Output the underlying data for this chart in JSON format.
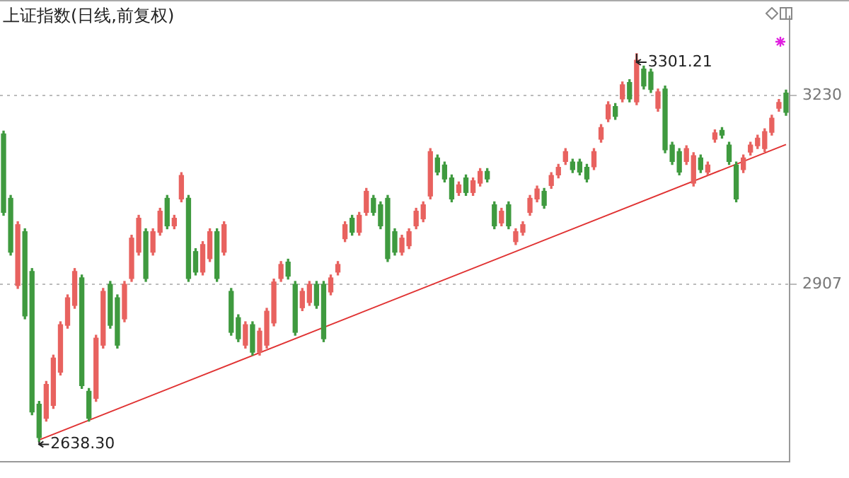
{
  "chart_data": {
    "type": "candlestick",
    "title": "上证指数(日线,前复权)",
    "categories": [
      null,
      null,
      null,
      null,
      null,
      null,
      null,
      null,
      null,
      null,
      null,
      null,
      null,
      null,
      null,
      null,
      null,
      null,
      null,
      null,
      null,
      null,
      null,
      null,
      null,
      null,
      null,
      null,
      null,
      null,
      null,
      null,
      null,
      null,
      null,
      null,
      null,
      null,
      null,
      null,
      null,
      null,
      null,
      null,
      null,
      null,
      null,
      null,
      null,
      null,
      null,
      null,
      null,
      null,
      null,
      null,
      null,
      null,
      null,
      null,
      null,
      null,
      null,
      null,
      null,
      null,
      null,
      null,
      null,
      null,
      null,
      null,
      null,
      null,
      null,
      null,
      null,
      null,
      null,
      null,
      null,
      null,
      null,
      null,
      null,
      null,
      null,
      null,
      null,
      null,
      null,
      null,
      null,
      null,
      null,
      null,
      null,
      null,
      null,
      null,
      null,
      null,
      null,
      null,
      null,
      null,
      null,
      null,
      null,
      null,
      null
    ],
    "ohlc": [
      [
        3164,
        3169,
        3025,
        3030
      ],
      [
        3054,
        3059,
        2957,
        2962
      ],
      [
        2905,
        3014,
        2900,
        3009
      ],
      [
        2997,
        3002,
        2848,
        2853
      ],
      [
        2929,
        2934,
        2684,
        2689
      ],
      [
        2702,
        2707,
        2638.3,
        2645
      ],
      [
        2678,
        2741,
        2673,
        2736
      ],
      [
        2700,
        2786,
        2695,
        2781
      ],
      [
        2757,
        2843,
        2752,
        2838
      ],
      [
        2837,
        2889,
        2832,
        2884
      ],
      [
        2871,
        2934,
        2866,
        2929
      ],
      [
        2918,
        2923,
        2729,
        2734
      ],
      [
        2724,
        2729,
        2673,
        2678
      ],
      [
        2712,
        2820,
        2707,
        2815
      ],
      [
        2803,
        2900,
        2798,
        2895
      ],
      [
        2907,
        2912,
        2832,
        2837
      ],
      [
        2884,
        2889,
        2798,
        2803
      ],
      [
        2848,
        2912,
        2843,
        2907
      ],
      [
        2917,
        2991,
        2912,
        2986
      ],
      [
        2962,
        3025,
        2957,
        3020
      ],
      [
        2997,
        3002,
        2912,
        2917
      ],
      [
        2962,
        3002,
        2957,
        2997
      ],
      [
        2996,
        3037,
        2991,
        3032
      ],
      [
        3054,
        3059,
        3002,
        3007
      ],
      [
        3007,
        3025,
        3002,
        3020
      ],
      [
        3053,
        3098,
        3048,
        3093
      ],
      [
        3054,
        3059,
        2912,
        2917
      ],
      [
        2963,
        2968,
        2923,
        2928
      ],
      [
        2928,
        2980,
        2923,
        2975
      ],
      [
        2951,
        3002,
        2946,
        2997
      ],
      [
        2997,
        3002,
        2912,
        2917
      ],
      [
        2962,
        3014,
        2957,
        3009
      ],
      [
        2895,
        2900,
        2820,
        2825
      ],
      [
        2850,
        2855,
        2809,
        2814
      ],
      [
        2803,
        2843,
        2798,
        2838
      ],
      [
        2838,
        2843,
        2786,
        2791
      ],
      [
        2791,
        2832,
        2786,
        2827
      ],
      [
        2803,
        2866,
        2798,
        2861
      ],
      [
        2841,
        2916,
        2836,
        2911
      ],
      [
        2917,
        2946,
        2912,
        2941
      ],
      [
        2945,
        2950,
        2916,
        2921
      ],
      [
        2907,
        2912,
        2820,
        2825
      ],
      [
        2867,
        2900,
        2862,
        2895
      ],
      [
        2876,
        2912,
        2871,
        2907
      ],
      [
        2907,
        2912,
        2866,
        2871
      ],
      [
        2907,
        2912,
        2809,
        2814
      ],
      [
        2894,
        2923,
        2889,
        2918
      ],
      [
        2928,
        2946,
        2923,
        2941
      ],
      [
        2985,
        3014,
        2980,
        3009
      ],
      [
        3020,
        3025,
        2991,
        2996
      ],
      [
        2996,
        3030,
        2991,
        3025
      ],
      [
        3030,
        3071,
        3025,
        3066
      ],
      [
        3054,
        3059,
        3025,
        3030
      ],
      [
        3043,
        3048,
        3002,
        3007
      ],
      [
        3054,
        3059,
        2946,
        2951
      ],
      [
        2997,
        3002,
        2957,
        2962
      ],
      [
        2962,
        2991,
        2957,
        2986
      ],
      [
        2973,
        3002,
        2968,
        2997
      ],
      [
        3007,
        3037,
        3002,
        3032
      ],
      [
        3019,
        3048,
        3014,
        3043
      ],
      [
        3058,
        3139,
        3053,
        3134
      ],
      [
        3123,
        3128,
        3094,
        3099
      ],
      [
        3111,
        3116,
        3082,
        3087
      ],
      [
        3089,
        3094,
        3048,
        3053
      ],
      [
        3064,
        3082,
        3059,
        3077
      ],
      [
        3089,
        3094,
        3059,
        3064
      ],
      [
        3064,
        3089,
        3059,
        3084
      ],
      [
        3080,
        3105,
        3075,
        3100
      ],
      [
        3100,
        3105,
        3082,
        3087
      ],
      [
        3043,
        3048,
        3002,
        3007
      ],
      [
        3012,
        3037,
        3007,
        3032
      ],
      [
        3043,
        3048,
        3002,
        3007
      ],
      [
        2980,
        3002,
        2975,
        2997
      ],
      [
        2996,
        3014,
        2991,
        3009
      ],
      [
        3030,
        3059,
        3025,
        3054
      ],
      [
        3053,
        3075,
        3048,
        3070
      ],
      [
        3066,
        3071,
        3037,
        3042
      ],
      [
        3076,
        3098,
        3071,
        3093
      ],
      [
        3094,
        3112,
        3089,
        3107
      ],
      [
        3117,
        3139,
        3112,
        3134
      ],
      [
        3116,
        3121,
        3098,
        3103
      ],
      [
        3116,
        3121,
        3094,
        3099
      ],
      [
        3107,
        3112,
        3082,
        3087
      ],
      [
        3108,
        3139,
        3103,
        3134
      ],
      [
        3155,
        3180,
        3150,
        3175
      ],
      [
        3190,
        3219,
        3185,
        3214
      ],
      [
        3211,
        3216,
        3189,
        3194
      ],
      [
        3224,
        3253,
        3219,
        3248
      ],
      [
        3252,
        3257,
        3219,
        3224
      ],
      [
        3219,
        3301.21,
        3214,
        3290
      ],
      [
        3275,
        3280,
        3241,
        3246
      ],
      [
        3270,
        3275,
        3235,
        3240
      ],
      [
        3208,
        3241,
        3203,
        3236
      ],
      [
        3241,
        3246,
        3132,
        3137
      ],
      [
        3145,
        3150,
        3112,
        3117
      ],
      [
        3134,
        3139,
        3094,
        3099
      ],
      [
        3117,
        3144,
        3112,
        3139
      ],
      [
        3080,
        3132,
        3075,
        3127
      ],
      [
        3123,
        3128,
        3098,
        3103
      ],
      [
        3099,
        3116,
        3094,
        3111
      ],
      [
        3155,
        3171,
        3150,
        3166
      ],
      [
        3170,
        3175,
        3157,
        3162
      ],
      [
        3145,
        3150,
        3112,
        3117
      ],
      [
        3111,
        3116,
        3048,
        3053
      ],
      [
        3103,
        3128,
        3098,
        3123
      ],
      [
        3133,
        3150,
        3128,
        3145
      ],
      [
        3144,
        3162,
        3139,
        3157
      ],
      [
        3139,
        3173,
        3134,
        3168
      ],
      [
        3167,
        3196,
        3162,
        3191
      ],
      [
        3208,
        3223,
        3203,
        3218
      ],
      [
        3234,
        3239,
        3196,
        3201
      ]
    ],
    "colors": [
      "#3f9a3f",
      "#3f9a3f",
      "#e8625f",
      "#3f9a3f",
      "#3f9a3f",
      "#3f9a3f",
      "#e8625f",
      "#e8625f",
      "#e8625f",
      "#e8625f",
      "#e8625f",
      "#3f9a3f",
      "#3f9a3f",
      "#e8625f",
      "#e8625f",
      "#3f9a3f",
      "#3f9a3f",
      "#e8625f",
      "#e8625f",
      "#e8625f",
      "#3f9a3f",
      "#e8625f",
      "#e8625f",
      "#3f9a3f",
      "#e8625f",
      "#e8625f",
      "#3f9a3f",
      "#3f9a3f",
      "#e8625f",
      "#e8625f",
      "#3f9a3f",
      "#e8625f",
      "#3f9a3f",
      "#3f9a3f",
      "#e8625f",
      "#3f9a3f",
      "#e8625f",
      "#e8625f",
      "#e8625f",
      "#e8625f",
      "#3f9a3f",
      "#3f9a3f",
      "#e8625f",
      "#e8625f",
      "#3f9a3f",
      "#3f9a3f",
      "#e8625f",
      "#e8625f",
      "#e8625f",
      "#3f9a3f",
      "#e8625f",
      "#e8625f",
      "#3f9a3f",
      "#3f9a3f",
      "#3f9a3f",
      "#3f9a3f",
      "#e8625f",
      "#e8625f",
      "#e8625f",
      "#e8625f",
      "#e8625f",
      "#3f9a3f",
      "#3f9a3f",
      "#3f9a3f",
      "#e8625f",
      "#3f9a3f",
      "#e8625f",
      "#e8625f",
      "#3f9a3f",
      "#3f9a3f",
      "#e8625f",
      "#3f9a3f",
      "#e8625f",
      "#e8625f",
      "#e8625f",
      "#e8625f",
      "#3f9a3f",
      "#e8625f",
      "#e8625f",
      "#e8625f",
      "#3f9a3f",
      "#3f9a3f",
      "#3f9a3f",
      "#e8625f",
      "#e8625f",
      "#e8625f",
      "#3f9a3f",
      "#e8625f",
      "#3f9a3f",
      "#e8625f",
      "#3f9a3f",
      "#3f9a3f",
      "#e8625f",
      "#3f9a3f",
      "#3f9a3f",
      "#3f9a3f",
      "#e8625f",
      "#e8625f",
      "#3f9a3f",
      "#e8625f",
      "#e8625f",
      "#3f9a3f",
      "#3f9a3f",
      "#3f9a3f",
      "#e8625f",
      "#e8625f",
      "#e8625f",
      "#e8625f",
      "#e8625f",
      "#e8625f",
      "#3f9a3f"
    ],
    "series": [
      {
        "type": "line",
        "color": "#e03232",
        "values": [
          null,
          null,
          null,
          null,
          null,
          2641,
          null,
          null,
          null,
          null,
          null,
          null,
          null,
          null,
          null,
          null,
          null,
          null,
          null,
          null,
          null,
          null,
          null,
          null,
          null,
          null,
          null,
          null,
          null,
          null,
          null,
          null,
          null,
          null,
          null,
          null,
          null,
          null,
          null,
          null,
          null,
          null,
          null,
          null,
          null,
          null,
          null,
          null,
          null,
          null,
          null,
          null,
          null,
          null,
          null,
          null,
          null,
          null,
          null,
          null,
          null,
          null,
          null,
          null,
          null,
          null,
          null,
          null,
          null,
          null,
          null,
          null,
          null,
          null,
          null,
          null,
          null,
          null,
          null,
          null,
          null,
          null,
          null,
          null,
          null,
          null,
          null,
          null,
          null,
          null,
          null,
          null,
          null,
          null,
          null,
          null,
          null,
          null,
          null,
          null,
          null,
          null,
          null,
          null,
          null,
          null,
          null,
          null,
          null,
          null,
          3146
        ]
      }
    ],
    "annotations": [
      "3301.21",
      "2638.30"
    ],
    "ylim": [
      2604,
      3365
    ],
    "yticks": [
      2907,
      3230
    ],
    "grid": "y",
    "tick_labels": "y",
    "legend": false
  }
}
